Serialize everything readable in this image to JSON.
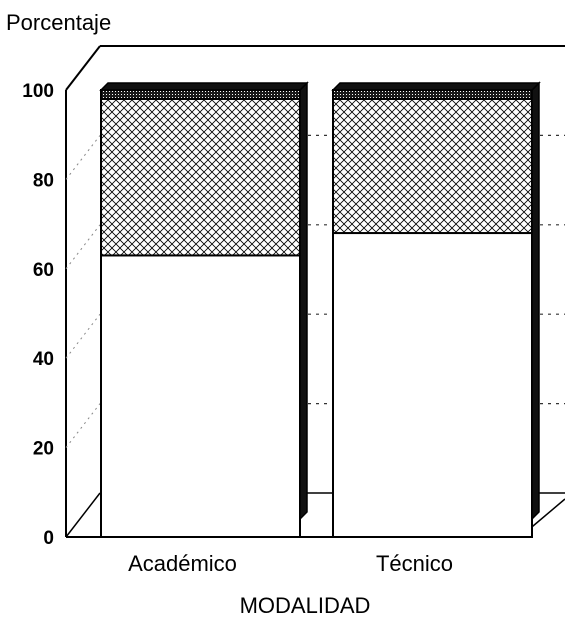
{
  "chart_data": {
    "type": "bar",
    "stacked": true,
    "three_d": true,
    "ylabel": "Porcentaje",
    "xlabel": "MODALIDAD",
    "ylim": [
      0,
      100
    ],
    "yticks": [
      0,
      20,
      40,
      60,
      80,
      100
    ],
    "categories": [
      "Académico",
      "Técnico"
    ],
    "series": [
      {
        "values": [
          63,
          68
        ],
        "fill": "plain-white"
      },
      {
        "values": [
          35,
          30
        ],
        "fill": "cross-hatch"
      },
      {
        "values": [
          2,
          2
        ],
        "fill": "dark-dotted"
      }
    ],
    "grid": "dotted-back-wall",
    "legend": "none",
    "colors": {
      "stroke": "#000000",
      "background": "#ffffff",
      "top_band": "#1a1a1a"
    }
  }
}
